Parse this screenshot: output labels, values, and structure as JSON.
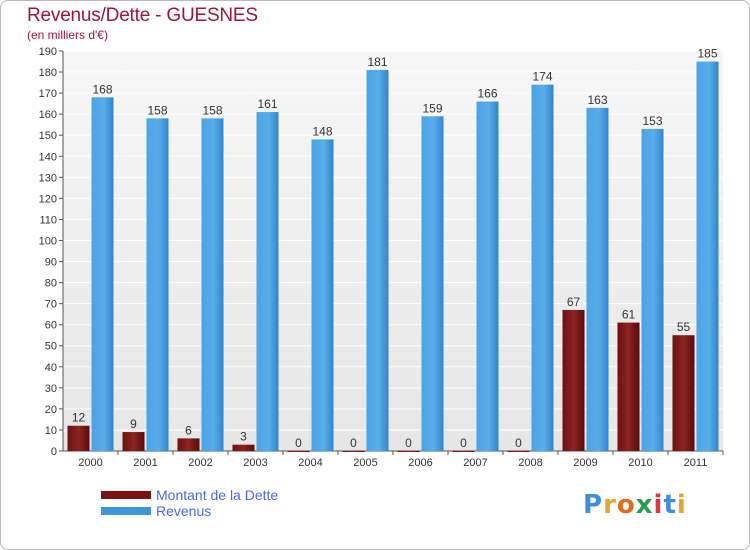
{
  "title": "Revenus/Dette - GUESNES",
  "subtitle": "(en milliers d'€)",
  "logo": {
    "text": "Proxiti",
    "colors": [
      "#3b8fd8",
      "#e0a82e",
      "#e36a1f",
      "#2a9d4b",
      "#d63b3b",
      "#3b8fd8",
      "#e0a82e"
    ]
  },
  "legend": [
    {
      "label": "Montant de la Dette",
      "color": "#7a1414"
    },
    {
      "label": "Revenus",
      "color": "#3d95dc"
    }
  ],
  "chart_data": {
    "type": "bar",
    "categories": [
      "2000",
      "2001",
      "2002",
      "2003",
      "2004",
      "2005",
      "2006",
      "2007",
      "2008",
      "2009",
      "2010",
      "2011"
    ],
    "series": [
      {
        "name": "Montant de la Dette",
        "color": "#7a1414",
        "values": [
          12,
          9,
          6,
          3,
          0,
          0,
          0,
          0,
          0,
          67,
          61,
          55
        ]
      },
      {
        "name": "Revenus",
        "color": "#3d95dc",
        "values": [
          168,
          158,
          158,
          161,
          148,
          181,
          159,
          166,
          174,
          163,
          153,
          185
        ]
      }
    ],
    "ylim": [
      0,
      190
    ],
    "yticks": [
      0,
      10,
      20,
      30,
      40,
      50,
      60,
      70,
      80,
      90,
      100,
      110,
      120,
      130,
      140,
      150,
      160,
      170,
      180,
      190
    ],
    "grid": true,
    "legend_position": "bottom-left"
  }
}
